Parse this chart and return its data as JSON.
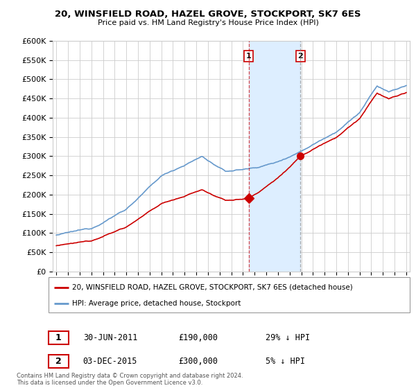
{
  "title": "20, WINSFIELD ROAD, HAZEL GROVE, STOCKPORT, SK7 6ES",
  "subtitle": "Price paid vs. HM Land Registry's House Price Index (HPI)",
  "property_label": "20, WINSFIELD ROAD, HAZEL GROVE, STOCKPORT, SK7 6ES (detached house)",
  "hpi_label": "HPI: Average price, detached house, Stockport",
  "sale1_date": "30-JUN-2011",
  "sale1_price": 190000,
  "sale1_pct": "29% ↓ HPI",
  "sale1_x": 2011.5,
  "sale2_date": "03-DEC-2015",
  "sale2_price": 300000,
  "sale2_pct": "5% ↓ HPI",
  "sale2_x": 2015.92,
  "property_color": "#cc0000",
  "hpi_color": "#6699cc",
  "hpi_fill_color": "#ddeeff",
  "highlight_color": "#ddeeff",
  "footer": "Contains HM Land Registry data © Crown copyright and database right 2024.\nThis data is licensed under the Open Government Licence v3.0.",
  "ylim": [
    0,
    600000
  ],
  "yticks": [
    0,
    50000,
    100000,
    150000,
    200000,
    250000,
    300000,
    350000,
    400000,
    450000,
    500000,
    550000,
    600000
  ],
  "xlim_start": 1994.7,
  "xlim_end": 2025.3
}
